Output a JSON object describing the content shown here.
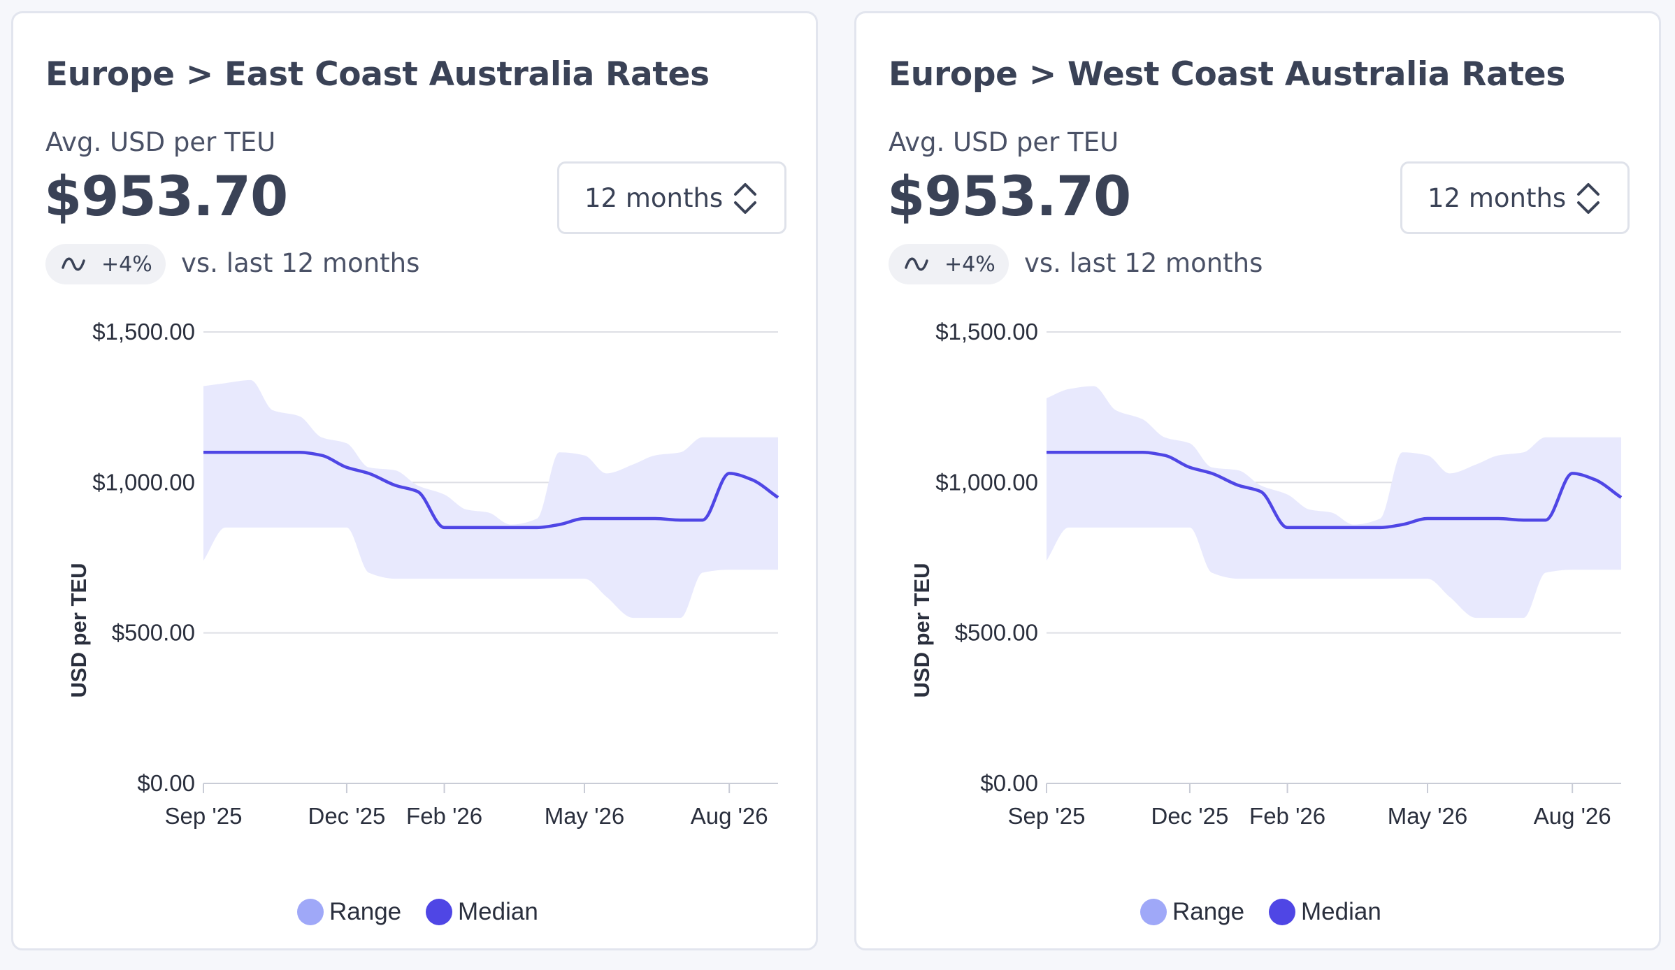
{
  "colors": {
    "range": "#9fa8f8",
    "range_fill": "#e8e9fd",
    "median": "#4f46e5",
    "grid": "#dedfe5",
    "text": "#3a4256"
  },
  "cards": [
    {
      "title": "Europe > East Coast Australia Rates",
      "metric_label": "Avg. USD per TEU",
      "metric_value": "$953.70",
      "period_select": {
        "value": "12 months",
        "icon": "chevron-up-down-icon"
      },
      "trend": {
        "icon": "trend-wave-icon",
        "value": "+4%",
        "caption": "vs. last 12 months"
      },
      "legend": [
        {
          "label": "Range",
          "color": "#9fa8f8"
        },
        {
          "label": "Median",
          "color": "#4f46e5"
        }
      ]
    },
    {
      "title": "Europe > West Coast Australia Rates",
      "metric_label": "Avg. USD per TEU",
      "metric_value": "$953.70",
      "period_select": {
        "value": "12 months",
        "icon": "chevron-up-down-icon"
      },
      "trend": {
        "icon": "trend-wave-icon",
        "value": "+4%",
        "caption": "vs. last 12 months"
      },
      "legend": [
        {
          "label": "Range",
          "color": "#9fa8f8"
        },
        {
          "label": "Median",
          "color": "#4f46e5"
        }
      ]
    }
  ],
  "chart_data": [
    {
      "type": "area",
      "ylabel": "USD per TEU",
      "ylim": [
        0,
        1500
      ],
      "yticks": [
        0,
        500,
        1000,
        1500
      ],
      "ytick_labels": [
        "$0.00",
        "$500.00",
        "$1,000.00",
        "$1,500.00"
      ],
      "xlim": [
        "2025-09-01",
        "2026-09-01"
      ],
      "xticks": [
        "2025-09-01",
        "2025-12-01",
        "2026-02-01",
        "2026-05-01",
        "2026-08-01"
      ],
      "xtick_labels": [
        "Sep '25",
        "Dec '25",
        "Feb '26",
        "May '26",
        "Aug '26"
      ],
      "grid": true,
      "legend_position": "bottom",
      "x": [
        "2025-09-01",
        "2025-09-15",
        "2025-10-01",
        "2025-10-15",
        "2025-11-01",
        "2025-11-15",
        "2025-12-01",
        "2025-12-15",
        "2026-01-01",
        "2026-01-15",
        "2026-02-01",
        "2026-02-15",
        "2026-03-01",
        "2026-03-15",
        "2026-04-01",
        "2026-04-15",
        "2026-05-01",
        "2026-05-15",
        "2026-06-01",
        "2026-06-15",
        "2026-07-01",
        "2026-07-15",
        "2026-08-01",
        "2026-08-15",
        "2026-09-01"
      ],
      "series": [
        {
          "name": "Range",
          "kind": "band",
          "low": [
            740,
            850,
            850,
            850,
            850,
            850,
            850,
            700,
            680,
            680,
            680,
            680,
            680,
            680,
            680,
            680,
            680,
            620,
            550,
            550,
            550,
            700,
            710,
            710,
            710
          ],
          "high": [
            1320,
            1330,
            1340,
            1240,
            1220,
            1150,
            1130,
            1050,
            1040,
            990,
            960,
            910,
            900,
            860,
            880,
            1100,
            1090,
            1030,
            1060,
            1090,
            1100,
            1150,
            1150,
            1150,
            1150
          ]
        },
        {
          "name": "Median",
          "kind": "line",
          "values": [
            1100,
            1100,
            1100,
            1100,
            1100,
            1090,
            1050,
            1030,
            990,
            970,
            850,
            850,
            850,
            850,
            850,
            860,
            880,
            880,
            880,
            880,
            875,
            875,
            1030,
            1010,
            950
          ]
        }
      ]
    },
    {
      "type": "area",
      "ylabel": "USD per TEU",
      "ylim": [
        0,
        1500
      ],
      "yticks": [
        0,
        500,
        1000,
        1500
      ],
      "ytick_labels": [
        "$0.00",
        "$500.00",
        "$1,000.00",
        "$1,500.00"
      ],
      "xlim": [
        "2025-09-01",
        "2026-09-01"
      ],
      "xticks": [
        "2025-09-01",
        "2025-12-01",
        "2026-02-01",
        "2026-05-01",
        "2026-08-01"
      ],
      "xtick_labels": [
        "Sep '25",
        "Dec '25",
        "Feb '26",
        "May '26",
        "Aug '26"
      ],
      "grid": true,
      "legend_position": "bottom",
      "x": [
        "2025-09-01",
        "2025-09-15",
        "2025-10-01",
        "2025-10-15",
        "2025-11-01",
        "2025-11-15",
        "2025-12-01",
        "2025-12-15",
        "2026-01-01",
        "2026-01-15",
        "2026-02-01",
        "2026-02-15",
        "2026-03-01",
        "2026-03-15",
        "2026-04-01",
        "2026-04-15",
        "2026-05-01",
        "2026-05-15",
        "2026-06-01",
        "2026-06-15",
        "2026-07-01",
        "2026-07-15",
        "2026-08-01",
        "2026-08-15",
        "2026-09-01"
      ],
      "series": [
        {
          "name": "Range",
          "kind": "band",
          "low": [
            740,
            850,
            850,
            850,
            850,
            850,
            850,
            700,
            680,
            680,
            680,
            680,
            680,
            680,
            680,
            680,
            680,
            620,
            550,
            550,
            550,
            700,
            710,
            710,
            710
          ],
          "high": [
            1280,
            1310,
            1320,
            1240,
            1210,
            1150,
            1130,
            1050,
            1040,
            990,
            960,
            910,
            900,
            860,
            880,
            1100,
            1090,
            1030,
            1060,
            1090,
            1100,
            1150,
            1150,
            1150,
            1150
          ]
        },
        {
          "name": "Median",
          "kind": "line",
          "values": [
            1100,
            1100,
            1100,
            1100,
            1100,
            1090,
            1050,
            1030,
            990,
            970,
            850,
            850,
            850,
            850,
            850,
            860,
            880,
            880,
            880,
            880,
            875,
            875,
            1030,
            1010,
            950
          ]
        }
      ]
    }
  ]
}
